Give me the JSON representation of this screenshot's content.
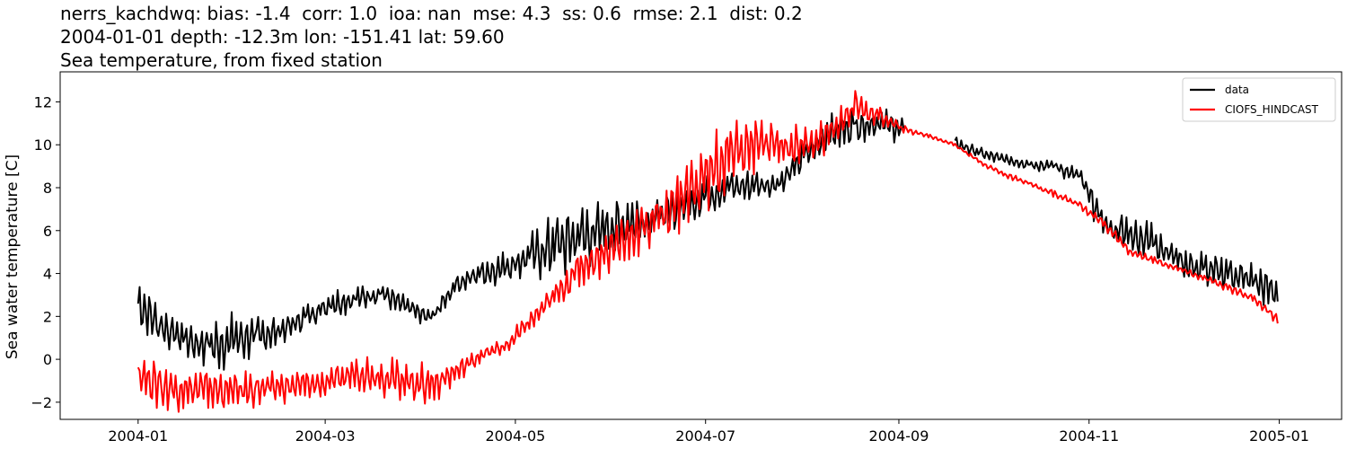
{
  "title_lines": [
    "nerrs_kachdwq: bias: -1.4  corr: 1.0  ioa: nan  mse: 4.3  ss: 0.6  rmse: 2.1  dist: 0.2",
    "2004-01-01 depth: -12.3m lon: -151.41 lat: 59.60",
    "Sea temperature, from fixed station"
  ],
  "chart_data": {
    "type": "line",
    "ylabel": "Sea water temperature [C]",
    "xlabel": "",
    "x_axis": "date",
    "xlim": [
      "2003-12-07",
      "2005-01-21"
    ],
    "ylim": [
      -2.8,
      13.4
    ],
    "x_ticks": [
      "2004-01",
      "2004-03",
      "2004-05",
      "2004-07",
      "2004-09",
      "2004-11",
      "2005-01"
    ],
    "y_ticks": [
      -2,
      0,
      2,
      4,
      6,
      8,
      10,
      12
    ],
    "grid": false,
    "legend": {
      "position": "top-right",
      "entries": [
        "data",
        "CIOFS_HINDCAST"
      ]
    },
    "series": [
      {
        "name": "data",
        "color": "#000000",
        "x": [
          "2004-01-01",
          "2004-01-08",
          "2004-01-16",
          "2004-01-24",
          "2004-02-01",
          "2004-02-08",
          "2004-02-16",
          "2004-02-24",
          "2004-03-03",
          "2004-03-11",
          "2004-03-19",
          "2004-03-27",
          "2004-04-04",
          "2004-04-12",
          "2004-04-20",
          "2004-04-28",
          "2004-05-06",
          "2004-05-14",
          "2004-05-22",
          "2004-05-30",
          "2004-06-07",
          "2004-06-15",
          "2004-06-23",
          "2004-07-01",
          "2004-07-09",
          "2004-07-17",
          "2004-07-25",
          "2004-08-02",
          "2004-08-10",
          "2004-08-18",
          "2004-08-26",
          "2004-09-03",
          "2004-09-11",
          "2004-09-19",
          "2004-09-27",
          "2004-10-05",
          "2004-10-13",
          "2004-10-21",
          "2004-10-29",
          "2004-11-06",
          "2004-11-14",
          "2004-11-22",
          "2004-11-30",
          "2004-12-08",
          "2004-12-16",
          "2004-12-24",
          "2005-01-01"
        ],
        "values": [
          2.6,
          1.6,
          0.9,
          0.6,
          0.9,
          1.1,
          1.3,
          2.0,
          2.6,
          2.8,
          3.1,
          2.4,
          1.9,
          3.5,
          4.0,
          4.3,
          4.8,
          5.3,
          5.7,
          6.0,
          6.4,
          6.6,
          7.0,
          7.6,
          8.0,
          8.1,
          8.2,
          9.5,
          10.5,
          10.9,
          11.0,
          10.7,
          null,
          10.1,
          9.6,
          9.3,
          9.1,
          9.0,
          8.5,
          6.2,
          5.8,
          5.5,
          4.6,
          4.1,
          4.0,
          3.6,
          3.0
        ],
        "amplitude": [
          1.3,
          1.0,
          1.2,
          1.3,
          1.4,
          1.0,
          0.9,
          0.6,
          0.7,
          0.7,
          0.6,
          0.6,
          0.4,
          0.5,
          0.7,
          0.8,
          1.2,
          1.8,
          1.7,
          1.6,
          1.4,
          1.1,
          1.0,
          1.0,
          0.9,
          0.8,
          0.7,
          0.9,
          1.0,
          0.9,
          0.8,
          0.7,
          0,
          0.3,
          0.3,
          0.3,
          0.3,
          0.4,
          0.5,
          1.0,
          1.0,
          1.0,
          1.0,
          1.0,
          0.9,
          1.0,
          0.9
        ]
      },
      {
        "name": "CIOFS_HINDCAST",
        "color": "#ff0000",
        "x": [
          "2004-01-01",
          "2004-01-08",
          "2004-01-16",
          "2004-01-24",
          "2004-02-01",
          "2004-02-08",
          "2004-02-16",
          "2004-02-24",
          "2004-03-03",
          "2004-03-11",
          "2004-03-19",
          "2004-03-27",
          "2004-04-04",
          "2004-04-12",
          "2004-04-20",
          "2004-04-28",
          "2004-05-06",
          "2004-05-14",
          "2004-05-22",
          "2004-05-30",
          "2004-06-07",
          "2004-06-15",
          "2004-06-23",
          "2004-07-01",
          "2004-07-09",
          "2004-07-17",
          "2004-07-25",
          "2004-08-02",
          "2004-08-10",
          "2004-08-18",
          "2004-08-26",
          "2004-09-03",
          "2004-09-11",
          "2004-09-19",
          "2004-09-27",
          "2004-10-05",
          "2004-10-13",
          "2004-10-21",
          "2004-10-29",
          "2004-11-06",
          "2004-11-14",
          "2004-11-22",
          "2004-11-30",
          "2004-12-08",
          "2004-12-16",
          "2004-12-24",
          "2005-01-01"
        ],
        "values": [
          -0.6,
          -1.3,
          -1.4,
          -1.4,
          -1.5,
          -1.4,
          -1.3,
          -1.2,
          -1.1,
          -0.6,
          -0.8,
          -1.0,
          -1.2,
          -0.6,
          0.2,
          0.6,
          1.8,
          3.0,
          4.3,
          5.0,
          5.8,
          6.5,
          7.5,
          8.5,
          9.5,
          10.0,
          9.9,
          10.0,
          10.5,
          11.8,
          11.3,
          10.7,
          10.4,
          10.0,
          9.2,
          8.6,
          8.2,
          7.7,
          7.2,
          6.3,
          5.0,
          4.6,
          4.2,
          3.8,
          3.3,
          2.8,
          1.8
        ],
        "amplitude": [
          1.1,
          1.2,
          1.1,
          1.0,
          1.0,
          0.9,
          0.8,
          0.8,
          0.8,
          0.9,
          1.0,
          1.0,
          1.1,
          0.6,
          0.4,
          0.5,
          0.5,
          0.7,
          1.0,
          1.2,
          1.4,
          1.6,
          1.8,
          2.0,
          1.9,
          1.6,
          1.2,
          1.0,
          0.9,
          0.8,
          0.5,
          0.2,
          0.1,
          0.1,
          0.1,
          0.2,
          0.1,
          0.2,
          0.2,
          0.3,
          0.2,
          0.2,
          0.2,
          0.2,
          0.2,
          0.2,
          0.3
        ]
      }
    ]
  }
}
